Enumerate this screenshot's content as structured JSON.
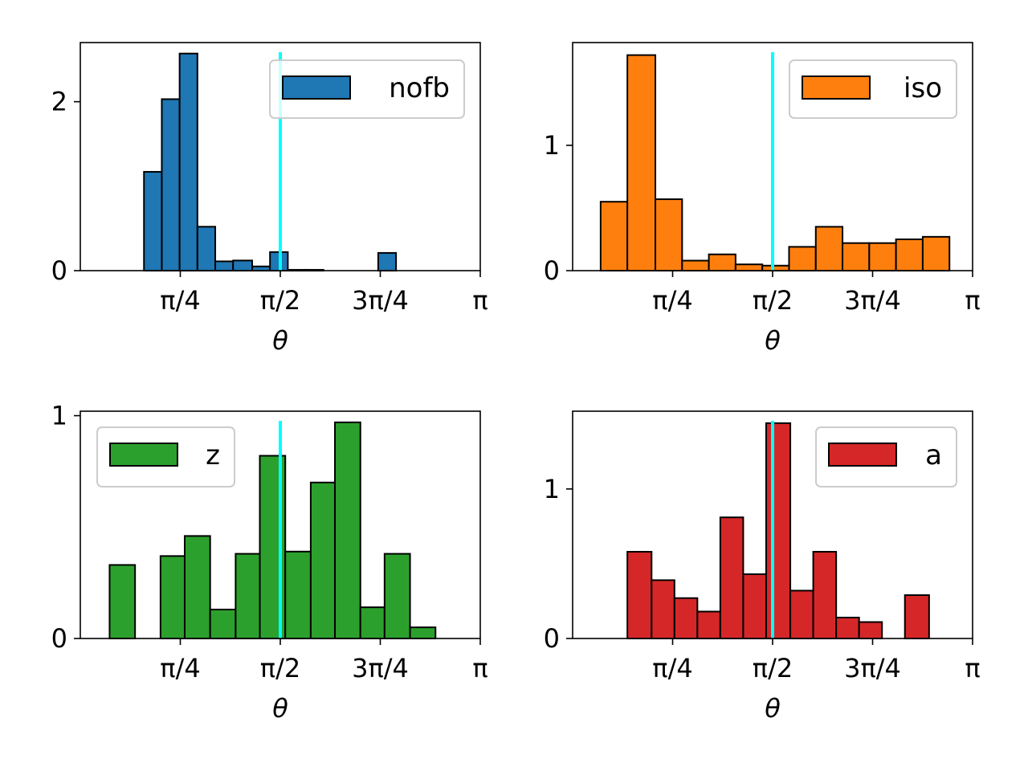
{
  "chart_data": [
    {
      "type": "bar",
      "title": "",
      "xlabel": "θ",
      "ylabel": "",
      "series_name": "nofb",
      "color": "#1f77b4",
      "xlim": [
        0,
        3.14159
      ],
      "ylim": [
        0,
        2.7
      ],
      "yticks": [
        0,
        2
      ],
      "xticks": [
        0.7854,
        1.5708,
        2.3562,
        3.14159
      ],
      "xtick_labels": [
        "π/4",
        "π/2",
        "3π/4",
        "π"
      ],
      "vline_x": 1.5708,
      "vline_color": "#00ffff",
      "legend": "nofb",
      "legend_position": "top-right",
      "bins": [
        {
          "x0": 0.5,
          "x1": 0.64,
          "value": 1.17
        },
        {
          "x0": 0.64,
          "x1": 0.78,
          "value": 2.03
        },
        {
          "x0": 0.78,
          "x1": 0.92,
          "value": 2.57
        },
        {
          "x0": 0.92,
          "x1": 1.06,
          "value": 0.52
        },
        {
          "x0": 1.06,
          "x1": 1.2,
          "value": 0.11
        },
        {
          "x0": 1.2,
          "x1": 1.35,
          "value": 0.12
        },
        {
          "x0": 1.35,
          "x1": 1.49,
          "value": 0.05
        },
        {
          "x0": 1.49,
          "x1": 1.63,
          "value": 0.22
        },
        {
          "x0": 1.63,
          "x1": 1.77,
          "value": 0.01
        },
        {
          "x0": 1.77,
          "x1": 1.91,
          "value": 0.01
        },
        {
          "x0": 1.91,
          "x1": 2.05,
          "value": 0.0
        },
        {
          "x0": 2.05,
          "x1": 2.19,
          "value": 0.0
        },
        {
          "x0": 2.19,
          "x1": 2.34,
          "value": 0.0
        },
        {
          "x0": 2.34,
          "x1": 2.48,
          "value": 0.21
        }
      ]
    },
    {
      "type": "bar",
      "title": "",
      "xlabel": "θ",
      "ylabel": "",
      "series_name": "iso",
      "color": "#ff7f0e",
      "xlim": [
        0,
        3.14159
      ],
      "ylim": [
        0,
        1.82
      ],
      "yticks": [
        0,
        1
      ],
      "xticks": [
        0.7854,
        1.5708,
        2.3562,
        3.14159
      ],
      "xtick_labels": [
        "π/4",
        "π/2",
        "3π/4",
        "π"
      ],
      "vline_x": 1.5708,
      "vline_color": "#00ffff",
      "legend": "iso",
      "legend_position": "top-right",
      "bins": [
        {
          "x0": 0.22,
          "x1": 0.43,
          "value": 0.55
        },
        {
          "x0": 0.43,
          "x1": 0.65,
          "value": 1.72
        },
        {
          "x0": 0.65,
          "x1": 0.86,
          "value": 0.57
        },
        {
          "x0": 0.86,
          "x1": 1.07,
          "value": 0.08
        },
        {
          "x0": 1.07,
          "x1": 1.28,
          "value": 0.13
        },
        {
          "x0": 1.28,
          "x1": 1.49,
          "value": 0.05
        },
        {
          "x0": 1.49,
          "x1": 1.7,
          "value": 0.04
        },
        {
          "x0": 1.7,
          "x1": 1.91,
          "value": 0.19
        },
        {
          "x0": 1.91,
          "x1": 2.12,
          "value": 0.35
        },
        {
          "x0": 2.12,
          "x1": 2.33,
          "value": 0.22
        },
        {
          "x0": 2.33,
          "x1": 2.54,
          "value": 0.22
        },
        {
          "x0": 2.54,
          "x1": 2.75,
          "value": 0.25
        },
        {
          "x0": 2.75,
          "x1": 2.96,
          "value": 0.27
        }
      ]
    },
    {
      "type": "bar",
      "title": "",
      "xlabel": "θ",
      "ylabel": "",
      "series_name": "z",
      "color": "#2ca02c",
      "xlim": [
        0,
        3.14159
      ],
      "ylim": [
        0,
        1.02
      ],
      "yticks": [
        0,
        1
      ],
      "xticks": [
        0.7854,
        1.5708,
        2.3562,
        3.14159
      ],
      "xtick_labels": [
        "π/4",
        "π/2",
        "3π/4",
        "π"
      ],
      "vline_x": 1.5708,
      "vline_color": "#00ffff",
      "legend": "z",
      "legend_position": "top-left",
      "bins": [
        {
          "x0": 0.23,
          "x1": 0.43,
          "value": 0.33
        },
        {
          "x0": 0.43,
          "x1": 0.63,
          "value": 0.0
        },
        {
          "x0": 0.63,
          "x1": 0.82,
          "value": 0.37
        },
        {
          "x0": 0.82,
          "x1": 1.02,
          "value": 0.46
        },
        {
          "x0": 1.02,
          "x1": 1.22,
          "value": 0.13
        },
        {
          "x0": 1.22,
          "x1": 1.41,
          "value": 0.38
        },
        {
          "x0": 1.41,
          "x1": 1.61,
          "value": 0.82
        },
        {
          "x0": 1.61,
          "x1": 1.81,
          "value": 0.39
        },
        {
          "x0": 1.81,
          "x1": 2.0,
          "value": 0.7
        },
        {
          "x0": 2.0,
          "x1": 2.2,
          "value": 0.97
        },
        {
          "x0": 2.2,
          "x1": 2.39,
          "value": 0.14
        },
        {
          "x0": 2.39,
          "x1": 2.59,
          "value": 0.38
        },
        {
          "x0": 2.59,
          "x1": 2.79,
          "value": 0.05
        }
      ]
    },
    {
      "type": "bar",
      "title": "",
      "xlabel": "θ",
      "ylabel": "",
      "series_name": "a",
      "color": "#d62728",
      "xlim": [
        0,
        3.14159
      ],
      "ylim": [
        0,
        1.52
      ],
      "yticks": [
        0,
        1
      ],
      "xticks": [
        0.7854,
        1.5708,
        2.3562,
        3.14159
      ],
      "xtick_labels": [
        "π/4",
        "π/2",
        "3π/4",
        "π"
      ],
      "vline_x": 1.5708,
      "vline_color": "#00ffff",
      "legend": "a",
      "legend_position": "top-right",
      "bins": [
        {
          "x0": 0.43,
          "x1": 0.62,
          "value": 0.58
        },
        {
          "x0": 0.62,
          "x1": 0.8,
          "value": 0.39
        },
        {
          "x0": 0.8,
          "x1": 0.98,
          "value": 0.27
        },
        {
          "x0": 0.98,
          "x1": 1.16,
          "value": 0.18
        },
        {
          "x0": 1.16,
          "x1": 1.34,
          "value": 0.81
        },
        {
          "x0": 1.34,
          "x1": 1.52,
          "value": 0.43
        },
        {
          "x0": 1.52,
          "x1": 1.71,
          "value": 1.44
        },
        {
          "x0": 1.71,
          "x1": 1.89,
          "value": 0.32
        },
        {
          "x0": 1.89,
          "x1": 2.07,
          "value": 0.58
        },
        {
          "x0": 2.07,
          "x1": 2.25,
          "value": 0.14
        },
        {
          "x0": 2.25,
          "x1": 2.43,
          "value": 0.11
        },
        {
          "x0": 2.43,
          "x1": 2.61,
          "value": 0.0
        },
        {
          "x0": 2.61,
          "x1": 2.8,
          "value": 0.29
        }
      ]
    }
  ]
}
